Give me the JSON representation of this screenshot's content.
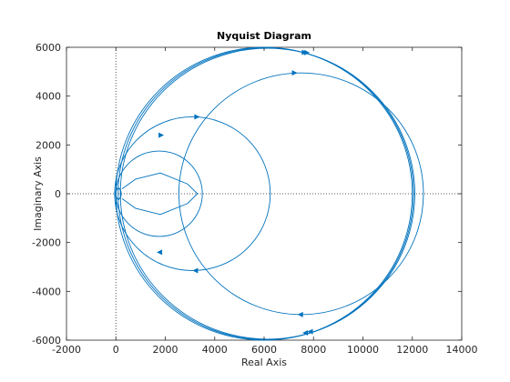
{
  "chart_data": {
    "type": "line",
    "title": "Nyquist Diagram",
    "xlabel": "Real Axis",
    "ylabel": "Imaginary Axis",
    "xlim": [
      -2000,
      14000
    ],
    "ylim": [
      -6000,
      6000
    ],
    "xticks": [
      -2000,
      0,
      2000,
      4000,
      6000,
      8000,
      10000,
      12000,
      14000
    ],
    "yticks": [
      -6000,
      -4000,
      -2000,
      0,
      2000,
      4000,
      6000
    ],
    "xtick_labels": [
      "-2000",
      "0",
      "2000",
      "4000",
      "6000",
      "8000",
      "10000",
      "12000",
      "14000"
    ],
    "ytick_labels": [
      "-6000",
      "-4000",
      "-2000",
      "0",
      "2000",
      "4000",
      "6000"
    ],
    "grid": false,
    "zero_lines": true,
    "series_color": "#0072bd",
    "series": [
      {
        "circle": {
          "cx": 6000,
          "cy": 0,
          "r": 6000
        }
      },
      {
        "circle": {
          "cx": 6070,
          "cy": 0,
          "r": 5980
        }
      },
      {
        "circle": {
          "cx": 6140,
          "cy": 0,
          "r": 5960
        }
      },
      {
        "circle": {
          "cx": 7500,
          "cy": 0,
          "r": 4950
        }
      },
      {
        "circle": {
          "cx": 3100,
          "cy": 0,
          "r": 3150
        }
      },
      {
        "circle": {
          "cx": 1750,
          "cy": 0,
          "r": 1750
        }
      },
      {
        "curve": [
          [
            250,
            200
          ],
          [
            800,
            600
          ],
          [
            1800,
            850
          ],
          [
            2900,
            400
          ],
          [
            3300,
            0
          ],
          [
            2900,
            -400
          ],
          [
            1800,
            -850
          ],
          [
            800,
            -600
          ],
          [
            250,
            -200
          ]
        ]
      }
    ],
    "arrows": [
      {
        "x": 7600,
        "y": 5790
      },
      {
        "x": 7700,
        "y": 5780
      },
      {
        "x": 7200,
        "y": 4950
      },
      {
        "x": 3250,
        "y": 3150
      },
      {
        "x": 3250,
        "y": -3150
      },
      {
        "x": 1800,
        "y": 2400
      },
      {
        "x": 1800,
        "y": -2400
      },
      {
        "x": 7500,
        "y": -4950
      },
      {
        "x": 7700,
        "y": -5700
      },
      {
        "x": 7900,
        "y": -5650
      }
    ]
  }
}
